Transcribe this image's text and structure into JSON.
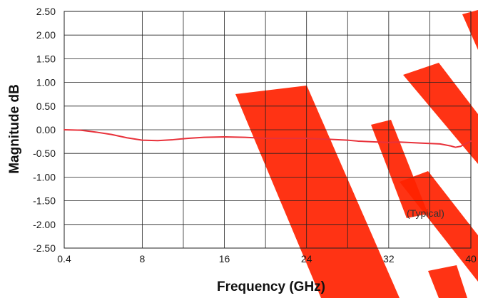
{
  "chart_data": {
    "type": "line",
    "title": "",
    "xlabel": "Frequency (GHz)",
    "ylabel": "Magnitude dB",
    "annotation": "(Typical)",
    "xlim": [
      0.4,
      40
    ],
    "ylim": [
      -2.5,
      2.5
    ],
    "x_ticks": [
      0.4,
      8,
      16,
      24,
      32,
      40
    ],
    "x_tick_labels": [
      "0.4",
      "8",
      "16",
      "24",
      "32",
      "40"
    ],
    "y_ticks": [
      2.5,
      2.0,
      1.5,
      1.0,
      0.5,
      0.0,
      -0.5,
      -1.0,
      -1.5,
      -2.0,
      -2.5
    ],
    "y_tick_labels": [
      "2.50",
      "2.00",
      "1.50",
      "1.00",
      "0.50",
      "0.00",
      "-0.50",
      "-1.00",
      "-1.50",
      "-2.00",
      "-2.50"
    ],
    "grid": true,
    "series": [
      {
        "color": "#e8313a",
        "x": [
          0.4,
          2,
          3.5,
          5,
          6.5,
          8,
          9.5,
          11,
          12.5,
          14,
          16,
          18,
          20,
          22,
          24,
          26,
          28,
          29,
          30,
          31,
          32,
          33,
          34,
          35,
          36,
          37,
          38,
          38.5,
          39,
          40
        ],
        "y": [
          0.0,
          -0.01,
          -0.05,
          -0.1,
          -0.17,
          -0.22,
          -0.23,
          -0.21,
          -0.18,
          -0.16,
          -0.15,
          -0.16,
          -0.18,
          -0.18,
          -0.18,
          -0.2,
          -0.22,
          -0.24,
          -0.25,
          -0.26,
          -0.27,
          -0.26,
          -0.27,
          -0.28,
          -0.29,
          -0.3,
          -0.34,
          -0.37,
          -0.35,
          -0.24
        ]
      }
    ]
  },
  "colors": {
    "line": "#e8313a",
    "grid": "#222222",
    "watermark": "#ff2200"
  }
}
